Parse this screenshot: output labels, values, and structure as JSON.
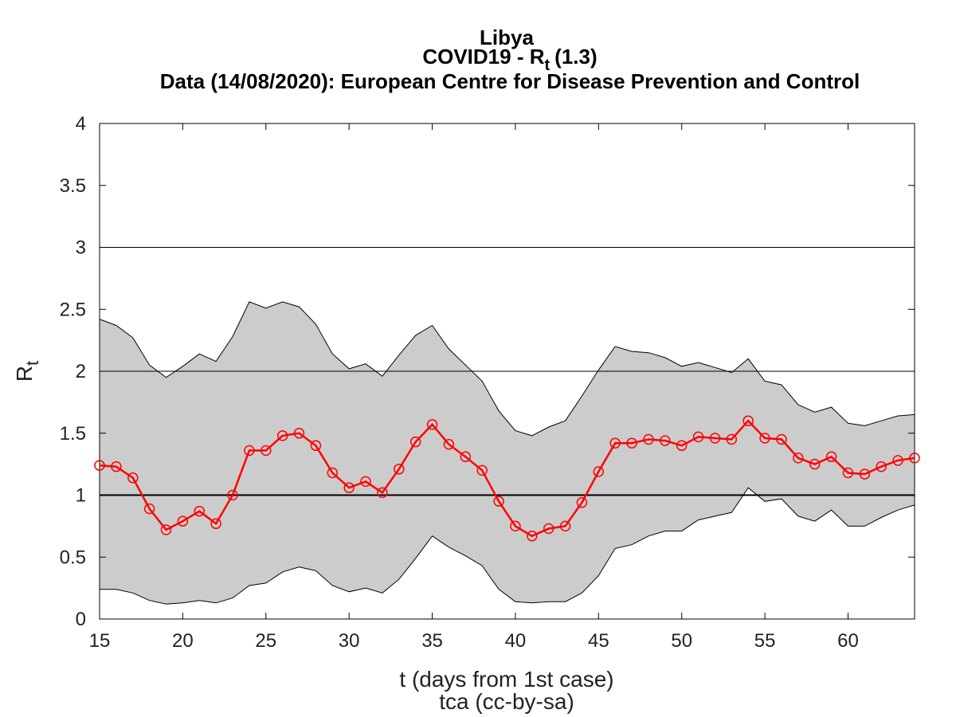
{
  "chart_data": {
    "type": "line",
    "title_lines": [
      "Libya",
      "COVID19 - R",
      "(1.3)",
      "Data (14/08/2020): European Centre for Disease Prevention and Control"
    ],
    "title_subscript": "t",
    "xlabel": "t (days from 1st case)",
    "credit": "tca (cc-by-sa)",
    "ylabel": "R",
    "ylabel_subscript": "t",
    "xlim": [
      15,
      64
    ],
    "ylim": [
      0,
      4
    ],
    "xticks": [
      "15",
      "20",
      "25",
      "30",
      "35",
      "40",
      "45",
      "50",
      "55",
      "60"
    ],
    "yticks": [
      "0",
      "0.5",
      "1",
      "1.5",
      "2",
      "2.5",
      "3",
      "3.5",
      "4"
    ],
    "reference_lines": [
      1,
      2,
      3
    ],
    "x": [
      15,
      16,
      17,
      18,
      19,
      20,
      21,
      22,
      23,
      24,
      25,
      26,
      27,
      28,
      29,
      30,
      31,
      32,
      33,
      34,
      35,
      36,
      37,
      38,
      39,
      40,
      41,
      42,
      43,
      44,
      45,
      46,
      47,
      48,
      49,
      50,
      51,
      52,
      53,
      54,
      55,
      56,
      57,
      58,
      59,
      60,
      61,
      62,
      63,
      64
    ],
    "series": [
      {
        "values": [
          1.24,
          1.23,
          1.14,
          0.89,
          0.72,
          0.79,
          0.87,
          0.77,
          1.0,
          1.36,
          1.36,
          1.48,
          1.5,
          1.4,
          1.18,
          1.06,
          1.11,
          1.02,
          1.21,
          1.43,
          1.57,
          1.41,
          1.31,
          1.2,
          0.95,
          0.75,
          0.67,
          0.73,
          0.75,
          0.94,
          1.19,
          1.42,
          1.42,
          1.45,
          1.44,
          1.4,
          1.47,
          1.46,
          1.45,
          1.6,
          1.46,
          1.45,
          1.3,
          1.25,
          1.31,
          1.18,
          1.17,
          1.23,
          1.28,
          1.3
        ],
        "color": "#ff0000"
      }
    ],
    "band": {
      "upper": [
        2.42,
        2.37,
        2.27,
        2.05,
        1.95,
        2.04,
        2.14,
        2.08,
        2.28,
        2.56,
        2.51,
        2.56,
        2.52,
        2.38,
        2.14,
        2.02,
        2.06,
        1.96,
        2.13,
        2.29,
        2.37,
        2.18,
        2.05,
        1.92,
        1.68,
        1.52,
        1.48,
        1.55,
        1.6,
        1.8,
        2.01,
        2.2,
        2.16,
        2.15,
        2.11,
        2.04,
        2.07,
        2.03,
        1.99,
        2.1,
        1.92,
        1.89,
        1.73,
        1.67,
        1.71,
        1.58,
        1.56,
        1.6,
        1.64,
        1.65
      ],
      "lower": [
        0.24,
        0.24,
        0.21,
        0.15,
        0.12,
        0.13,
        0.15,
        0.13,
        0.17,
        0.27,
        0.29,
        0.38,
        0.42,
        0.39,
        0.27,
        0.22,
        0.25,
        0.21,
        0.32,
        0.49,
        0.67,
        0.58,
        0.51,
        0.43,
        0.24,
        0.14,
        0.13,
        0.14,
        0.14,
        0.21,
        0.35,
        0.57,
        0.6,
        0.67,
        0.71,
        0.71,
        0.8,
        0.83,
        0.86,
        1.06,
        0.95,
        0.97,
        0.83,
        0.79,
        0.88,
        0.75,
        0.75,
        0.82,
        0.88,
        0.92
      ],
      "color": "#cccccc"
    }
  }
}
